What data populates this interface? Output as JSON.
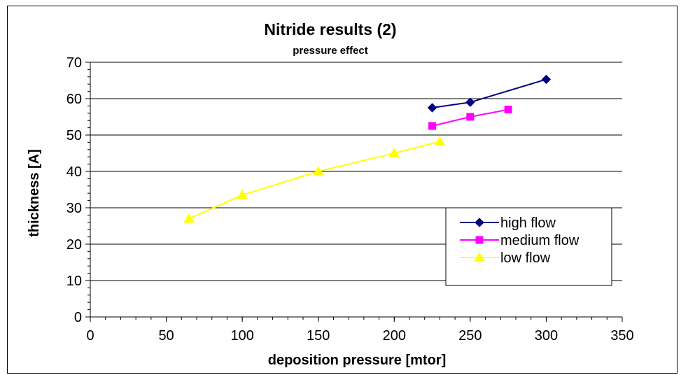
{
  "chart_data": {
    "type": "line",
    "title": "Nitride results (2)",
    "subtitle": "pressure effect",
    "xlabel": "deposition pressure [mtor]",
    "ylabel": "thickness [A]",
    "xlim": [
      0,
      350
    ],
    "ylim": [
      0,
      70
    ],
    "x_ticks": [
      0,
      50,
      100,
      150,
      200,
      250,
      300,
      350
    ],
    "y_ticks": [
      0,
      10,
      20,
      30,
      40,
      50,
      60,
      70
    ],
    "x_minor_step": 10,
    "y_minor_step": 2,
    "grid": "horizontal major",
    "legend_position": "bottom-right",
    "series": [
      {
        "name": "high flow",
        "color": "#000080",
        "marker": "diamond",
        "x": [
          225,
          250,
          300
        ],
        "y": [
          57.5,
          59,
          65.3
        ]
      },
      {
        "name": "medium flow",
        "color": "#ff00ff",
        "marker": "square",
        "x": [
          225,
          250,
          275
        ],
        "y": [
          52.5,
          55,
          57
        ]
      },
      {
        "name": "low flow",
        "color": "#ffff00",
        "marker": "triangle",
        "x": [
          65,
          100,
          150,
          200,
          230
        ],
        "y": [
          27,
          33.5,
          40,
          45,
          48.2
        ]
      }
    ]
  }
}
